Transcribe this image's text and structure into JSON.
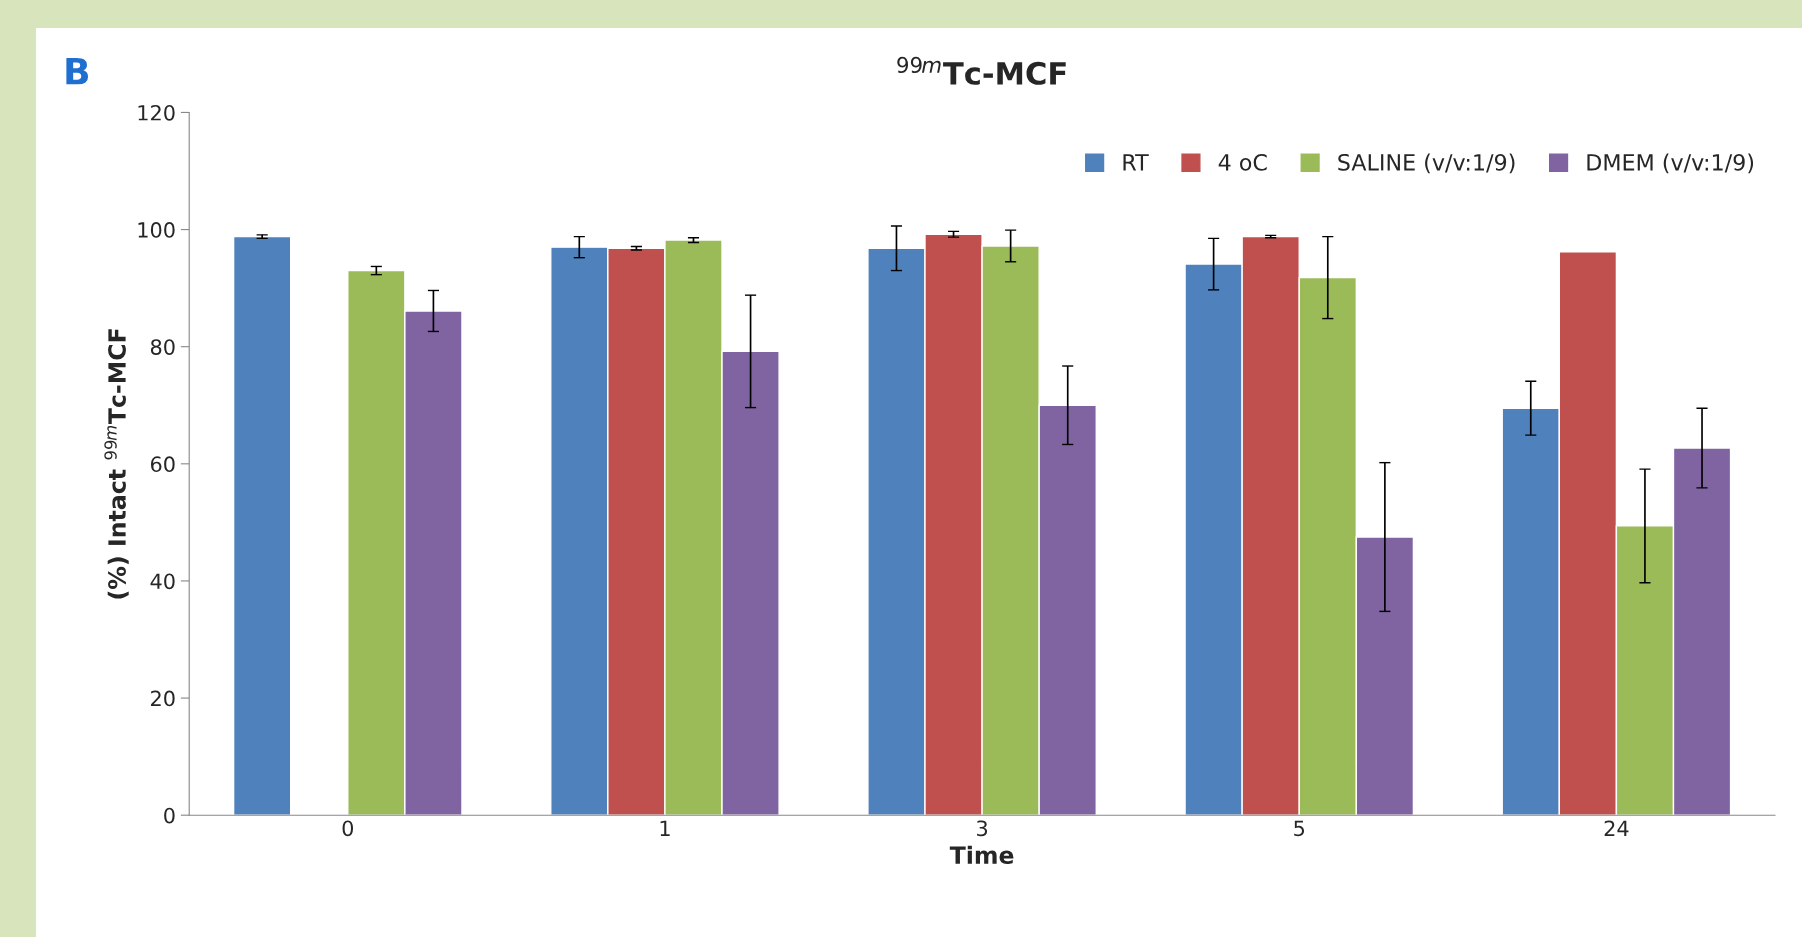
{
  "chart_data": {
    "type": "bar",
    "title": "$^{99m}$Tc-MCF",
    "ylabel": "(%) Intact $^{99m}$Tc-MCF",
    "xlabel": "Time",
    "annotations": [
      "B"
    ],
    "categories": [
      "0",
      "1",
      "3",
      "5",
      "24"
    ],
    "series": [
      {
        "name": "RT",
        "color": "#4f81bd",
        "values": [
          98.8,
          97.0,
          96.8,
          94.1,
          69.5
        ],
        "errors": [
          0.3,
          1.8,
          3.8,
          4.4,
          4.6
        ]
      },
      {
        "name": "4 oC",
        "color": "#c0504d",
        "values": [
          null,
          96.8,
          99.2,
          98.8,
          96.2
        ],
        "errors": [
          null,
          0.3,
          0.5,
          0.2,
          null
        ]
      },
      {
        "name": "SALINE (v/v:1/9)",
        "color": "#9bbb59",
        "values": [
          93.0,
          98.2,
          97.2,
          91.8,
          49.4
        ],
        "errors": [
          0.7,
          0.4,
          2.7,
          7.0,
          9.7
        ]
      },
      {
        "name": "DMEM (v/v:1/9)",
        "color": "#8064a2",
        "values": [
          86.1,
          79.2,
          70.0,
          47.5,
          62.7
        ],
        "errors": [
          3.5,
          9.6,
          6.7,
          12.7,
          6.8
        ]
      }
    ],
    "ylim": [
      0,
      120
    ],
    "yticks": [
      0,
      20,
      40,
      60,
      80,
      100,
      120
    ],
    "grid": false,
    "legend": "top right"
  }
}
